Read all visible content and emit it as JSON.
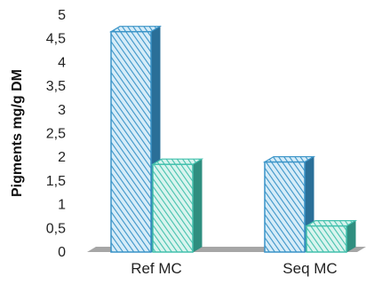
{
  "chart_data": {
    "type": "bar",
    "style": "3d",
    "ylabel": "Pigments mg/g DM",
    "xlabel": "",
    "ylim": [
      0,
      5
    ],
    "yticks": [
      "0",
      "0,5",
      "1",
      "1,5",
      "2",
      "2,5",
      "3",
      "3,5",
      "4",
      "4,5",
      "5"
    ],
    "grid": false,
    "categories": [
      "Ref MC",
      "Seq MC"
    ],
    "series": [
      {
        "values": [
          4.65,
          1.9
        ],
        "color": "#3a94c8",
        "hatch": "diagonal"
      },
      {
        "values": [
          1.85,
          0.55
        ],
        "color": "#43c1ad",
        "hatch": "diagonal"
      }
    ],
    "colors": {
      "floor": "#a6a6a6",
      "text": "#222222"
    }
  }
}
